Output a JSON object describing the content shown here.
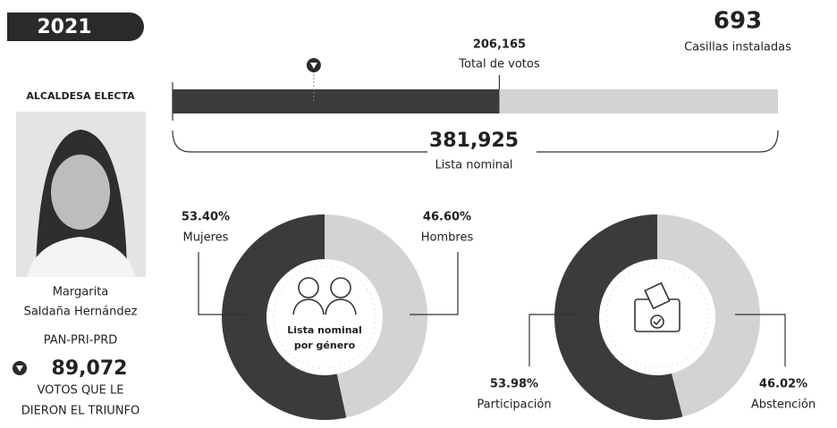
{
  "header": {
    "year": "2021"
  },
  "casillas": {
    "value": "693",
    "label": "Casillas instaladas"
  },
  "candidate": {
    "role": "ALCALDESA ELECTA",
    "name_lines": [
      "Margarita",
      "Saldaña Hernández"
    ],
    "party": "PAN-PRI-PRD",
    "votes_caption": [
      "VOTOS QUE LE",
      "DIERON EL TRIUNFO"
    ]
  },
  "chart_data": [
    {
      "type": "progress",
      "categories": [
        "Total de votos",
        "Lista nominal"
      ],
      "values": [
        206165,
        381925
      ],
      "value_labels": [
        "206,165",
        "381,925"
      ],
      "colors": [
        "#3b3b3b",
        "#d3d3d3"
      ],
      "marker": {
        "value": 89072,
        "label": "89,072"
      }
    },
    {
      "type": "pie",
      "categories": [
        "Mujeres",
        "Hombres"
      ],
      "values": [
        53.4,
        46.6
      ],
      "value_labels": [
        "53.40%",
        "46.60%"
      ],
      "colors": [
        "#3b3b3b",
        "#d3d3d3"
      ],
      "center_label": [
        "Lista nominal",
        "por género"
      ]
    },
    {
      "type": "pie",
      "categories": [
        "Participación",
        "Abstención"
      ],
      "values": [
        53.98,
        46.02
      ],
      "value_labels": [
        "53.98%",
        "46.02%"
      ],
      "colors": [
        "#3b3b3b",
        "#d3d3d3"
      ]
    }
  ]
}
